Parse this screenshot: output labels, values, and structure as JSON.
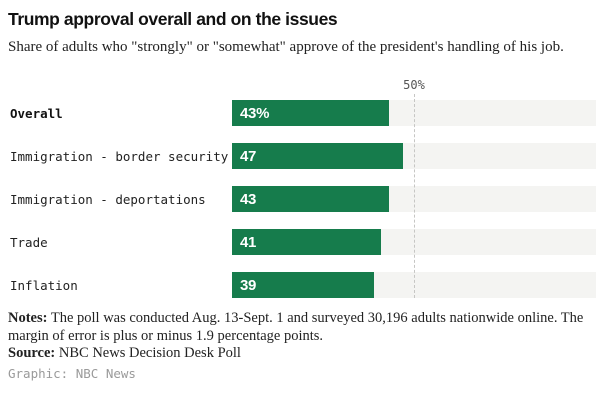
{
  "header": {
    "title": "Trump approval overall and on the issues",
    "subtitle": "Share of adults who \"strongly\" or \"somewhat\" approve of the president's handling of his job."
  },
  "chart_data": {
    "type": "bar",
    "orientation": "horizontal",
    "title": "Trump approval overall and on the issues",
    "categories": [
      "Overall",
      "Immigration - border security",
      "Immigration - deportations",
      "Trade",
      "Inflation"
    ],
    "values": [
      43,
      47,
      43,
      41,
      39
    ],
    "value_labels": [
      "43%",
      "47",
      "43",
      "41",
      "39"
    ],
    "emphasized_categories": [
      true,
      false,
      false,
      false,
      false
    ],
    "xlim": [
      0,
      100
    ],
    "gridline_at": 50,
    "gridline_label": "50%",
    "grid": "single dashed vertical line at 50%",
    "legend": "none",
    "bar_color": "#167c4c",
    "track_color": "#f4f4f2",
    "value_label_color": "#ffffff"
  },
  "notes": {
    "label": "Notes:",
    "text": "The poll was conducted Aug. 13-Sept. 1 and surveyed 30,196 adults nationwide online. The margin of error is plus or minus 1.9 percentage points."
  },
  "source": {
    "label": "Source:",
    "text": "NBC News Decision Desk Poll"
  },
  "credit": "Graphic: NBC News",
  "colors": {
    "bar_green": "#167c4c",
    "track_gray": "#f4f4f2",
    "gridline_gray": "#c6c6c4",
    "axis_label_gray": "#555555",
    "credit_gray": "#9a9a9a",
    "text_black": "#111111"
  }
}
